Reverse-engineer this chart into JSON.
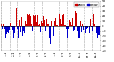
{
  "n_points": 365,
  "y_min": -50,
  "y_max": 50,
  "background_color": "#ffffff",
  "plot_bg_color": "#ffffff",
  "bar_color_above": "#cc0000",
  "bar_color_below": "#0000cc",
  "legend_above_label": "Above",
  "legend_below_label": "Below",
  "grid_color": "#bbbbbb",
  "tick_label_fontsize": 3.0,
  "ytick_values": [
    50,
    40,
    30,
    20,
    10,
    0,
    -10,
    -20,
    -30,
    -40,
    -50
  ],
  "month_starts": [
    0,
    31,
    59,
    90,
    120,
    151,
    181,
    212,
    243,
    273,
    304,
    334
  ],
  "month_mids": [
    15,
    45,
    74,
    105,
    135,
    166,
    196,
    227,
    258,
    288,
    319,
    349
  ],
  "month_labels": [
    "1-1",
    "2-1",
    "3-1",
    "4-1",
    "5-1",
    "6-1",
    "7-1",
    "8-1",
    "9-1",
    "10-1",
    "11-1",
    "12-1"
  ]
}
